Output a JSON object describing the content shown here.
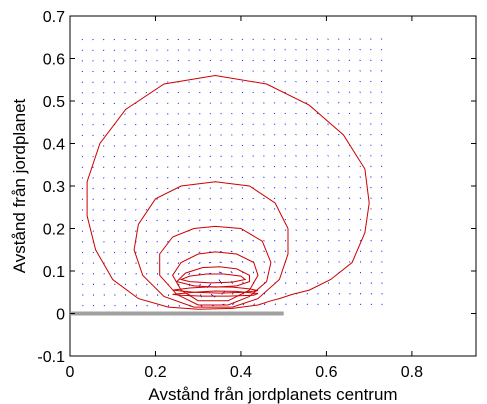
{
  "chart_data": {
    "type": "contour",
    "xlabel": "Avstånd från jordplanets centrum",
    "ylabel": "Avstånd från jordplanet",
    "xlim": [
      0,
      0.95
    ],
    "ylim": [
      -0.1,
      0.7
    ],
    "xticks": [
      0,
      0.2,
      0.4,
      0.6,
      0.8
    ],
    "xtick_labels": [
      "0",
      "0.2",
      "0.4",
      "0.6",
      "0.8"
    ],
    "yticks": [
      -0.1,
      0,
      0.1,
      0.2,
      0.3,
      0.4,
      0.5,
      0.6,
      0.7
    ],
    "ytick_labels": [
      "-0.1",
      "0",
      "0.1",
      "0.2",
      "0.3",
      "0.4",
      "0.5",
      "0.6",
      "0.7"
    ],
    "grid": false,
    "colors": {
      "contour": "#cc0000",
      "arrows": "#0000ff",
      "ground_plane": "#a0a0a0",
      "axes": "#000000"
    },
    "ground_plane": {
      "x": [
        0,
        0.5
      ],
      "y": 0
    },
    "vector_field": {
      "x_range": [
        0.03,
        0.75
      ],
      "y_range": [
        0.02,
        0.65
      ],
      "source_center": [
        0.34,
        0.06
      ]
    },
    "contours": [
      {
        "name": "outer",
        "points": [
          [
            0.3,
            0.01
          ],
          [
            0.23,
            0.015
          ],
          [
            0.16,
            0.035
          ],
          [
            0.1,
            0.08
          ],
          [
            0.06,
            0.15
          ],
          [
            0.04,
            0.23
          ],
          [
            0.04,
            0.31
          ],
          [
            0.07,
            0.4
          ],
          [
            0.13,
            0.48
          ],
          [
            0.22,
            0.54
          ],
          [
            0.34,
            0.56
          ],
          [
            0.46,
            0.54
          ],
          [
            0.56,
            0.49
          ],
          [
            0.64,
            0.42
          ],
          [
            0.69,
            0.34
          ],
          [
            0.7,
            0.26
          ],
          [
            0.69,
            0.19
          ],
          [
            0.66,
            0.12
          ],
          [
            0.61,
            0.08
          ],
          [
            0.56,
            0.055
          ],
          [
            0.52,
            0.045
          ],
          [
            0.49,
            0.035
          ],
          [
            0.47,
            0.03
          ],
          [
            0.44,
            0.02
          ],
          [
            0.38,
            0.012
          ],
          [
            0.3,
            0.01
          ]
        ]
      },
      {
        "name": "ring2",
        "points": [
          [
            0.29,
            0.015
          ],
          [
            0.22,
            0.04
          ],
          [
            0.17,
            0.09
          ],
          [
            0.15,
            0.15
          ],
          [
            0.16,
            0.21
          ],
          [
            0.2,
            0.27
          ],
          [
            0.26,
            0.3
          ],
          [
            0.34,
            0.31
          ],
          [
            0.42,
            0.3
          ],
          [
            0.48,
            0.26
          ],
          [
            0.51,
            0.2
          ],
          [
            0.51,
            0.14
          ],
          [
            0.49,
            0.08
          ],
          [
            0.44,
            0.035
          ],
          [
            0.38,
            0.015
          ],
          [
            0.29,
            0.015
          ]
        ]
      },
      {
        "name": "ring3",
        "points": [
          [
            0.3,
            0.02
          ],
          [
            0.25,
            0.045
          ],
          [
            0.21,
            0.09
          ],
          [
            0.21,
            0.14
          ],
          [
            0.24,
            0.18
          ],
          [
            0.29,
            0.2
          ],
          [
            0.34,
            0.205
          ],
          [
            0.4,
            0.2
          ],
          [
            0.45,
            0.17
          ],
          [
            0.47,
            0.12
          ],
          [
            0.46,
            0.075
          ],
          [
            0.42,
            0.04
          ],
          [
            0.37,
            0.02
          ],
          [
            0.3,
            0.02
          ]
        ]
      },
      {
        "name": "ring4",
        "points": [
          [
            0.3,
            0.03
          ],
          [
            0.26,
            0.055
          ],
          [
            0.24,
            0.09
          ],
          [
            0.26,
            0.12
          ],
          [
            0.3,
            0.14
          ],
          [
            0.34,
            0.145
          ],
          [
            0.39,
            0.14
          ],
          [
            0.43,
            0.12
          ],
          [
            0.44,
            0.09
          ],
          [
            0.42,
            0.055
          ],
          [
            0.37,
            0.03
          ],
          [
            0.3,
            0.03
          ]
        ]
      },
      {
        "name": "ring5",
        "points": [
          [
            0.25,
            0.075
          ],
          [
            0.27,
            0.095
          ],
          [
            0.31,
            0.108
          ],
          [
            0.35,
            0.11
          ],
          [
            0.39,
            0.105
          ],
          [
            0.42,
            0.09
          ],
          [
            0.42,
            0.075
          ],
          [
            0.39,
            0.065
          ],
          [
            0.34,
            0.062
          ],
          [
            0.29,
            0.065
          ],
          [
            0.25,
            0.075
          ]
        ]
      },
      {
        "name": "ring6",
        "points": [
          [
            0.26,
            0.08
          ],
          [
            0.28,
            0.088
          ],
          [
            0.32,
            0.093
          ],
          [
            0.36,
            0.093
          ],
          [
            0.4,
            0.088
          ],
          [
            0.41,
            0.08
          ],
          [
            0.38,
            0.074
          ],
          [
            0.33,
            0.072
          ],
          [
            0.28,
            0.075
          ],
          [
            0.26,
            0.08
          ]
        ]
      },
      {
        "name": "ring7",
        "points": [
          [
            0.24,
            0.055
          ],
          [
            0.28,
            0.06
          ],
          [
            0.33,
            0.063
          ],
          [
            0.38,
            0.062
          ],
          [
            0.42,
            0.058
          ],
          [
            0.44,
            0.054
          ],
          [
            0.41,
            0.05
          ],
          [
            0.35,
            0.048
          ],
          [
            0.29,
            0.05
          ],
          [
            0.24,
            0.055
          ]
        ]
      },
      {
        "name": "ring8",
        "points": [
          [
            0.24,
            0.045
          ],
          [
            0.29,
            0.05
          ],
          [
            0.34,
            0.053
          ],
          [
            0.39,
            0.052
          ],
          [
            0.44,
            0.047
          ],
          [
            0.43,
            0.043
          ],
          [
            0.37,
            0.041
          ],
          [
            0.31,
            0.041
          ],
          [
            0.26,
            0.043
          ],
          [
            0.24,
            0.045
          ]
        ]
      }
    ]
  }
}
